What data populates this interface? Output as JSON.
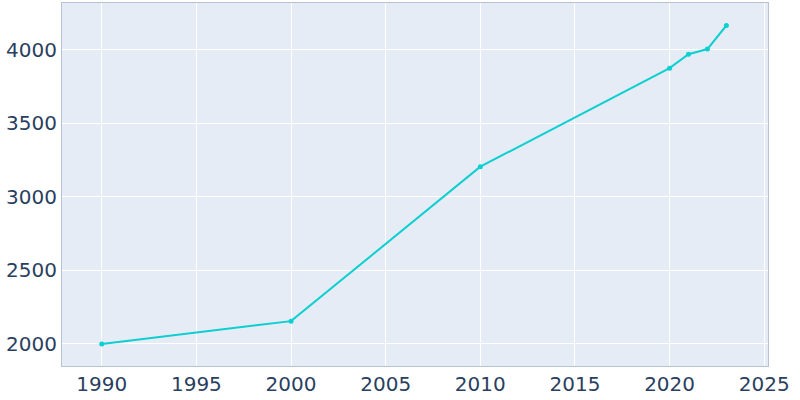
{
  "chart_data": {
    "type": "line",
    "x": [
      1990,
      2000,
      2010,
      2020,
      2021,
      2022,
      2023
    ],
    "values": [
      2000,
      2155,
      3205,
      3875,
      3970,
      4005,
      4165
    ],
    "color": "#0ccfd0",
    "marker": "circle",
    "xlim": [
      1987.9,
      2025.2
    ],
    "xticks": [
      1990,
      1995,
      2000,
      2005,
      2010,
      2015,
      2020,
      2025
    ],
    "ylim": [
      1850,
      4318
    ],
    "yticks": [
      2000,
      2500,
      3000,
      3500,
      4000
    ],
    "grid": true
  }
}
